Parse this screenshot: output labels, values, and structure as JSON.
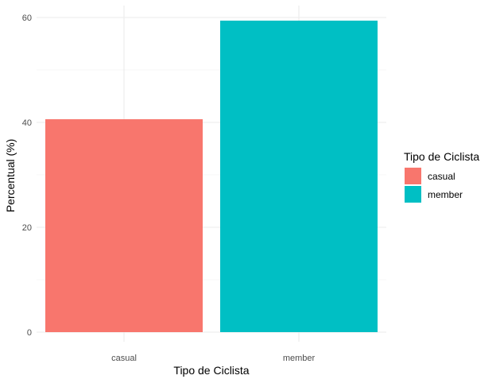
{
  "chart_data": {
    "type": "bar",
    "categories": [
      "casual",
      "member"
    ],
    "values": [
      40.6,
      59.4
    ],
    "colors": [
      "#F8766D",
      "#00BFC4"
    ],
    "xlabel": "Tipo de Ciclista",
    "ylabel": "Percentual (%)",
    "ylim": [
      0,
      62
    ],
    "yticks": [
      0,
      20,
      40,
      60
    ],
    "grid": true,
    "legend": {
      "title": "Tipo de Ciclista",
      "position": "right",
      "entries": [
        {
          "label": "casual",
          "color": "#F8766D"
        },
        {
          "label": "member",
          "color": "#00BFC4"
        }
      ]
    }
  }
}
